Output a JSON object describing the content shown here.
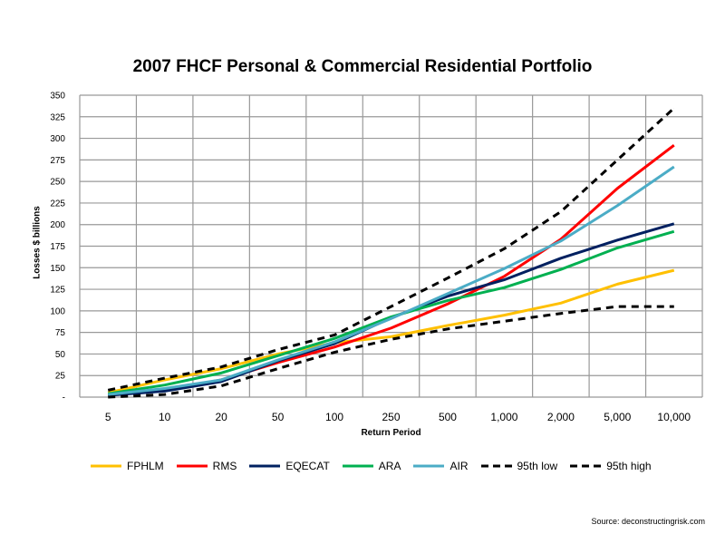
{
  "chart_data": {
    "type": "line",
    "title": "2007 FHCF Personal & Commercial Residential Portfolio",
    "xlabel": "Return Period",
    "ylabel": "Losses $ billions",
    "ylim": [
      0,
      350
    ],
    "yticks": [
      "-",
      "25",
      "50",
      "75",
      "100",
      "125",
      "150",
      "175",
      "200",
      "225",
      "250",
      "275",
      "300",
      "325",
      "350"
    ],
    "categories": [
      "5",
      "10",
      "20",
      "50",
      "100",
      "250",
      "500",
      "1,000",
      "2,000",
      "5,000",
      "10,000"
    ],
    "grid": true,
    "legend_position": "bottom",
    "series": [
      {
        "name": "FPHLM",
        "color": "#FFC000",
        "dash": false,
        "values": [
          5,
          20,
          33,
          50,
          63,
          70,
          83,
          95,
          109,
          131,
          147
        ]
      },
      {
        "name": "RMS",
        "color": "#FF0000",
        "dash": false,
        "values": [
          2,
          8,
          20,
          40,
          58,
          80,
          108,
          140,
          183,
          242,
          292
        ]
      },
      {
        "name": "EQECAT",
        "color": "#002060",
        "dash": false,
        "values": [
          2,
          7,
          18,
          42,
          62,
          92,
          117,
          136,
          161,
          182,
          201
        ]
      },
      {
        "name": "ARA",
        "color": "#00B050",
        "dash": false,
        "values": [
          4,
          14,
          28,
          48,
          68,
          93,
          112,
          127,
          148,
          173,
          192
        ]
      },
      {
        "name": "AIR",
        "color": "#4BACC6",
        "dash": false,
        "values": [
          3,
          10,
          20,
          43,
          64,
          91,
          120,
          149,
          181,
          222,
          267
        ]
      },
      {
        "name": "95th low",
        "color": "#000000",
        "dash": true,
        "values": [
          0,
          3,
          13,
          33,
          52,
          67,
          79,
          88,
          97,
          105,
          105
        ]
      },
      {
        "name": "95th high",
        "color": "#000000",
        "dash": true,
        "values": [
          8,
          22,
          35,
          55,
          72,
          105,
          138,
          172,
          215,
          275,
          335
        ]
      }
    ]
  },
  "source": "Source: deconstructingrisk.com"
}
